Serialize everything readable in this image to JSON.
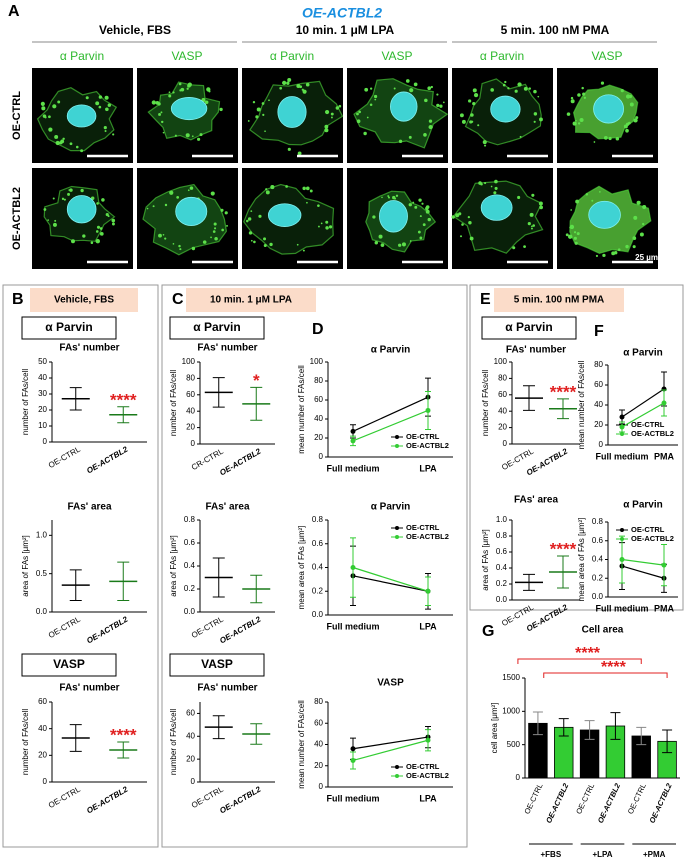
{
  "panel_a": {
    "letter": "A",
    "title": "OE-ACTBL2",
    "conditions": [
      "Vehicle, FBS",
      "10 min. 1 μM LPA",
      "5 min. 100 nM PMA"
    ],
    "stains": [
      "α Parvin",
      "VASP"
    ],
    "rows": [
      "OE-CTRL",
      "OE-ACTBL2"
    ],
    "scale_bar": "25 µm"
  },
  "panels": [
    {
      "letter": "B",
      "label": "Vehicle, FBS"
    },
    {
      "letter": "C",
      "label": "10 min. 1 μM LPA"
    },
    {
      "letter": "D"
    },
    {
      "letter": "E",
      "label": "5 min. 100 nM PMA"
    },
    {
      "letter": "F"
    },
    {
      "letter": "G"
    }
  ],
  "chart_data": [
    {
      "type": "dot",
      "heading": "α Parvin",
      "title": "FAs' number",
      "ylabel": "number of FAs/cell",
      "categories": [
        "OE-CTRL",
        "OE-ACTBL2"
      ],
      "values": [
        27,
        17
      ],
      "errors": [
        7,
        5
      ],
      "colors": [
        "#000000",
        "#33cc33"
      ],
      "significance": "****",
      "ylim": [
        0,
        50
      ],
      "yticks": [
        0,
        10,
        20,
        30,
        40,
        50
      ]
    },
    {
      "type": "dot",
      "title": "FAs' area",
      "ylabel": "area of FAs [μm²]",
      "categories": [
        "OE-CTRL",
        "OE-ACTBL2"
      ],
      "values": [
        0.35,
        0.4
      ],
      "errors": [
        0.2,
        0.25
      ],
      "colors": [
        "#000000",
        "#33cc33"
      ],
      "ylim": [
        0,
        1.2
      ],
      "yticks": [
        {
          "value": 0,
          "label": "0.0"
        },
        0.5,
        {
          "value": 1,
          "label": "1.0"
        }
      ]
    },
    {
      "type": "dot",
      "heading": "VASP",
      "title": "FAs' number",
      "ylabel": "number of FAs/cell",
      "categories": [
        "OE-CTRL",
        "OE-ACTBL2"
      ],
      "values": [
        33,
        24
      ],
      "errors": [
        10,
        6
      ],
      "colors": [
        "#000000",
        "#33cc33"
      ],
      "significance": "****",
      "ylim": [
        0,
        60
      ],
      "yticks": [
        0,
        20,
        40,
        60
      ]
    },
    {
      "type": "dot",
      "heading": "α Parvin",
      "title": "FAs' number",
      "ylabel": "number of FAs/cell",
      "categories": [
        "CR-CTRL",
        "OE-ACTBL2"
      ],
      "values": [
        63,
        49
      ],
      "errors": [
        18,
        20
      ],
      "colors": [
        "#000000",
        "#33cc33"
      ],
      "significance": "*",
      "ylim": [
        0,
        100
      ],
      "yticks": [
        0,
        20,
        40,
        60,
        80,
        100
      ]
    },
    {
      "type": "dot",
      "title": "FAs' area",
      "ylabel": "area of FAs [μm²]",
      "categories": [
        "OE-CTRL",
        "OE-ACTBL2"
      ],
      "values": [
        0.3,
        0.2
      ],
      "errors": [
        0.17,
        0.12
      ],
      "colors": [
        "#000000",
        "#33cc33"
      ],
      "ylim": [
        0,
        0.8
      ],
      "yticks": [
        {
          "value": 0,
          "label": "0.0"
        },
        0.2,
        0.4,
        0.6,
        0.8
      ]
    },
    {
      "type": "dot",
      "heading": "VASP",
      "title": "FAs' number",
      "ylabel": "number of FAs/cell",
      "categories": [
        "OE-CTRL",
        "OE-ACTBL2"
      ],
      "values": [
        48,
        42
      ],
      "errors": [
        10,
        9
      ],
      "colors": [
        "#000000",
        "#33cc33"
      ],
      "ylim": [
        0,
        70
      ],
      "yticks": [
        0,
        20,
        40,
        60
      ]
    },
    {
      "type": "line",
      "title": "α Parvin",
      "ylabel": "mean number of FAs/cell",
      "categories": [
        "Full medium",
        "LPA"
      ],
      "ylim": [
        0,
        100
      ],
      "yticks": [
        0,
        20,
        40,
        60,
        80,
        100
      ],
      "legend": "lower right",
      "series": [
        {
          "name": "OE-CTRL",
          "color": "#000000",
          "values": [
            27,
            63
          ],
          "errors": [
            7,
            20
          ]
        },
        {
          "name": "OE-ACTBL2",
          "color": "#33cc33",
          "values": [
            17,
            49
          ],
          "errors": [
            5,
            20
          ]
        }
      ]
    },
    {
      "type": "line",
      "title": "α Parvin",
      "ylabel": "mean area of FAs [μm²]",
      "categories": [
        "Full medium",
        "LPA"
      ],
      "ylim": [
        0,
        0.8
      ],
      "yticks": [
        {
          "value": 0,
          "label": "0.0"
        },
        0.2,
        0.4,
        0.6,
        0.8
      ],
      "legend": "upper right",
      "series": [
        {
          "name": "OE-CTRL",
          "color": "#000000",
          "values": [
            0.33,
            0.2
          ],
          "errors": [
            0.25,
            0.15
          ]
        },
        {
          "name": "OE-ACTBL2",
          "color": "#33cc33",
          "values": [
            0.4,
            0.2
          ],
          "errors": [
            0.25,
            0.12
          ]
        }
      ]
    },
    {
      "type": "line",
      "title": "VASP",
      "ylabel": "mean number of FAs/cell",
      "categories": [
        "Full medium",
        "LPA"
      ],
      "ylim": [
        0,
        80
      ],
      "yticks": [
        0,
        20,
        40,
        60,
        80
      ],
      "legend": "lower right",
      "series": [
        {
          "name": "OE-CTRL",
          "color": "#000000",
          "values": [
            36,
            47
          ],
          "errors": [
            10,
            10
          ]
        },
        {
          "name": "OE-ACTBL2",
          "color": "#33cc33",
          "values": [
            25,
            44
          ],
          "errors": [
            8,
            10
          ]
        }
      ]
    },
    {
      "type": "dot",
      "heading": "α Parvin",
      "title": "FAs' number",
      "ylabel": "number of FAs/cell",
      "categories": [
        "OE-CTRL",
        "OE-ACTBL2"
      ],
      "values": [
        56,
        43
      ],
      "errors": [
        15,
        12
      ],
      "colors": [
        "#000000",
        "#33cc33"
      ],
      "significance": "****",
      "ylim": [
        0,
        100
      ],
      "yticks": [
        0,
        20,
        40,
        60,
        80,
        100
      ]
    },
    {
      "type": "dot",
      "title": "FAs' area",
      "ylabel": "area of FAs [μm²]",
      "categories": [
        "OE-CTRL",
        "OE-ACTBL2"
      ],
      "values": [
        0.22,
        0.35
      ],
      "errors": [
        0.1,
        0.2
      ],
      "colors": [
        "#000000",
        "#33cc33"
      ],
      "significance": "****",
      "ylim": [
        0,
        1
      ],
      "yticks": [
        {
          "value": 0,
          "label": "0.0"
        },
        0.2,
        0.4,
        0.6,
        0.8,
        {
          "value": 1,
          "label": "1.0"
        }
      ]
    },
    {
      "type": "line",
      "title": "α Parvin",
      "ylabel": "mean number of FAs/cell",
      "categories": [
        "Full medium",
        "PMA"
      ],
      "ylim": [
        0,
        80
      ],
      "yticks": [
        0,
        20,
        40,
        60,
        80
      ],
      "legend": "lower right",
      "series": [
        {
          "name": "OE-CTRL",
          "color": "#000000",
          "values": [
            28,
            56
          ],
          "errors": [
            7,
            17
          ]
        },
        {
          "name": "OE-ACTBL2",
          "color": "#33cc33",
          "values": [
            18,
            42
          ],
          "errors": [
            5,
            13
          ]
        }
      ]
    },
    {
      "type": "line",
      "title": "α Parvin",
      "ylabel": "mean area of FAs [μm²]",
      "categories": [
        "Full medium",
        "PMA"
      ],
      "ylim": [
        0,
        0.8
      ],
      "yticks": [
        {
          "value": 0,
          "label": "0.0"
        },
        0.2,
        0.4,
        0.6,
        0.8
      ],
      "legend": "upper right",
      "series": [
        {
          "name": "OE-CTRL",
          "color": "#000000",
          "values": [
            0.33,
            0.2
          ],
          "errors": [
            0.25,
            0.15
          ]
        },
        {
          "name": "OE-ACTBL2",
          "color": "#33cc33",
          "values": [
            0.4,
            0.34
          ],
          "errors": [
            0.25,
            0.22
          ]
        }
      ]
    },
    {
      "type": "bar",
      "title": "Cell area",
      "ylabel": "cell area [μm²]",
      "categories": [
        "OE-CTRL",
        "OE-ACTBL2",
        "OE-CTRL",
        "OE-ACTBL2",
        "OE-CTRL",
        "OE-ACTBL2"
      ],
      "groups": [
        "+FBS",
        "+LPA",
        "+PMA"
      ],
      "values": [
        820,
        760,
        720,
        780,
        630,
        550
      ],
      "errors": [
        170,
        130,
        140,
        200,
        130,
        170
      ],
      "colors": [
        "#000000",
        "#33cc33",
        "#000000",
        "#33cc33",
        "#000000",
        "#33cc33"
      ],
      "significance": [
        "****",
        "****"
      ],
      "ylim": [
        0,
        1500
      ],
      "yticks": [
        0,
        500,
        1000,
        1500
      ]
    }
  ]
}
